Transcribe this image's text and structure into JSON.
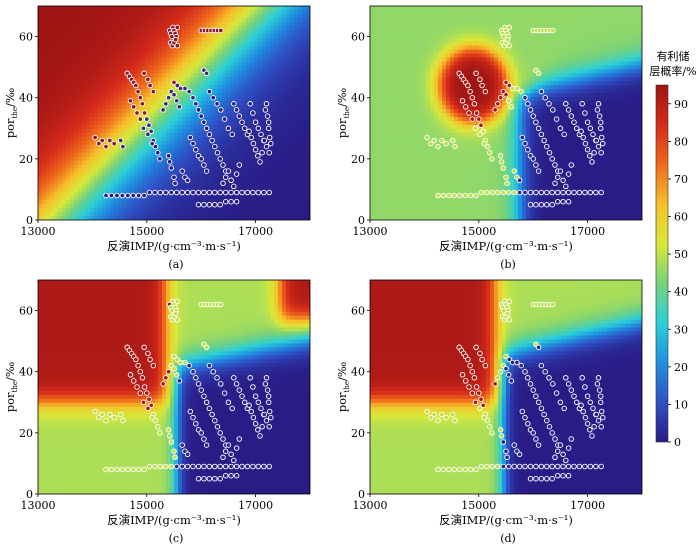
{
  "figure": {
    "colorbar": {
      "title_line1": "有利储",
      "title_line2": "层概率/%",
      "ticks": [
        0,
        10,
        20,
        30,
        40,
        50,
        60,
        70,
        80,
        90
      ],
      "range": [
        0,
        95
      ],
      "colormap": [
        "#2a1c86",
        "#2e4fc4",
        "#1f8fe0",
        "#2ad0d8",
        "#77d27a",
        "#d8e83a",
        "#f6c02a",
        "#ef6a1c",
        "#d42a1a",
        "#9e1414"
      ]
    }
  },
  "chart_data": [
    {
      "type": "heatmap",
      "panel_label": "(a)",
      "xlabel": "反演IMP/(g·cm⁻³·m·s⁻¹)",
      "ylabel_main": "por",
      "ylabel_sub": "the",
      "ylabel_unit": "/‰",
      "xlim": [
        13000,
        18000
      ],
      "ylim": [
        0,
        70
      ],
      "xticks": [
        13000,
        15000,
        17000
      ],
      "yticks": [
        0,
        20,
        40,
        60
      ],
      "field": "linear gradient: probability ~95% at low IMP/high por, decreasing to ~0% at high IMP/low por"
    },
    {
      "type": "heatmap",
      "panel_label": "(b)",
      "xlabel": "反演IMP/(g·cm⁻³·m·s⁻¹)",
      "ylabel_main": "por",
      "ylabel_sub": "the",
      "ylabel_unit": "/‰",
      "xlim": [
        13000,
        18000
      ],
      "ylim": [
        0,
        70
      ],
      "xticks": [
        13000,
        15000,
        17000
      ],
      "yticks": [
        0,
        20,
        40,
        60
      ],
      "field": "high-probability blob (~95%) centered near IMP 14900, por 44; low-probability region (~0%) at IMP > 15700, por < 42; ~45% elsewhere"
    },
    {
      "type": "heatmap",
      "panel_label": "(c)",
      "xlabel": "反演IMP/(g·cm⁻³·m·s⁻¹)",
      "ylabel_main": "por",
      "ylabel_sub": "the",
      "ylabel_unit": "/‰",
      "xlim": [
        13000,
        18000
      ],
      "ylim": [
        0,
        70
      ],
      "xticks": [
        13000,
        15000,
        17000
      ],
      "yticks": [
        0,
        20,
        40,
        60
      ],
      "field": "~90% at IMP < 15200, por > 30; ~90% in upper-right corner IMP > 17300, por > 58; ~0% at IMP > 15600, por < 45; ~48% elsewhere"
    },
    {
      "type": "heatmap",
      "panel_label": "(d)",
      "xlabel": "反演IMP/(g·cm⁻³·m·s⁻¹)",
      "ylabel_main": "por",
      "ylabel_sub": "the",
      "ylabel_unit": "/‰",
      "xlim": [
        13000,
        18000
      ],
      "ylim": [
        0,
        70
      ],
      "xticks": [
        13000,
        15000,
        17000
      ],
      "yticks": [
        0,
        20,
        40,
        60
      ],
      "field": "~90% at IMP < 15200, por > 30; ~0% at IMP > 15500, por < 48; ~48% elsewhere"
    }
  ],
  "well_points": [
    [
      14050,
      27
    ],
    [
      14120,
      25
    ],
    [
      14180,
      26
    ],
    [
      14250,
      24
    ],
    [
      14320,
      26
    ],
    [
      14400,
      25
    ],
    [
      14520,
      26
    ],
    [
      14560,
      24
    ],
    [
      14640,
      48
    ],
    [
      14680,
      47
    ],
    [
      14720,
      46
    ],
    [
      14760,
      45
    ],
    [
      14800,
      44
    ],
    [
      14840,
      42
    ],
    [
      14880,
      40
    ],
    [
      14920,
      38
    ],
    [
      14960,
      35
    ],
    [
      15000,
      33
    ],
    [
      15040,
      31
    ],
    [
      15080,
      29
    ],
    [
      15120,
      26
    ],
    [
      15160,
      24
    ],
    [
      15200,
      22
    ],
    [
      15240,
      20
    ],
    [
      14700,
      39
    ],
    [
      14760,
      37
    ],
    [
      14820,
      35
    ],
    [
      14880,
      33
    ],
    [
      14940,
      30
    ],
    [
      15020,
      28
    ],
    [
      15100,
      25
    ],
    [
      15300,
      36
    ],
    [
      15350,
      38
    ],
    [
      15400,
      40
    ],
    [
      15450,
      42
    ],
    [
      15500,
      41
    ],
    [
      15550,
      39
    ],
    [
      15600,
      37
    ],
    [
      14950,
      48
    ],
    [
      15020,
      46
    ],
    [
      15060,
      44
    ],
    [
      15120,
      42
    ],
    [
      15420,
      62
    ],
    [
      15440,
      61
    ],
    [
      15460,
      60
    ],
    [
      15480,
      63
    ],
    [
      15500,
      62
    ],
    [
      15520,
      61
    ],
    [
      15540,
      60
    ],
    [
      15560,
      63
    ],
    [
      15440,
      58
    ],
    [
      15470,
      57
    ],
    [
      15500,
      58
    ],
    [
      15530,
      59
    ],
    [
      15560,
      57
    ],
    [
      16000,
      62
    ],
    [
      16060,
      62
    ],
    [
      16120,
      62
    ],
    [
      16180,
      62
    ],
    [
      16240,
      62
    ],
    [
      16300,
      62
    ],
    [
      16360,
      62
    ],
    [
      16050,
      49
    ],
    [
      16100,
      48
    ],
    [
      15700,
      43
    ],
    [
      15780,
      42
    ],
    [
      15850,
      40
    ],
    [
      15900,
      38
    ],
    [
      15950,
      36
    ],
    [
      16000,
      34
    ],
    [
      16050,
      32
    ],
    [
      16100,
      30
    ],
    [
      16150,
      28
    ],
    [
      16200,
      26
    ],
    [
      16250,
      24
    ],
    [
      16300,
      22
    ],
    [
      16350,
      20
    ],
    [
      16400,
      18
    ],
    [
      16450,
      16
    ],
    [
      16150,
      42
    ],
    [
      16220,
      40
    ],
    [
      16290,
      38
    ],
    [
      16360,
      36
    ],
    [
      16430,
      33
    ],
    [
      16500,
      30
    ],
    [
      16570,
      28
    ],
    [
      16600,
      38
    ],
    [
      16650,
      36
    ],
    [
      16700,
      34
    ],
    [
      16750,
      32
    ],
    [
      16800,
      30
    ],
    [
      16850,
      28
    ],
    [
      16900,
      38
    ],
    [
      16950,
      35
    ],
    [
      17000,
      32
    ],
    [
      17050,
      30
    ],
    [
      17100,
      28
    ],
    [
      17150,
      26
    ],
    [
      17200,
      24
    ],
    [
      17250,
      22
    ],
    [
      16880,
      29
    ],
    [
      16920,
      27
    ],
    [
      16960,
      25
    ],
    [
      17000,
      23
    ],
    [
      17040,
      21
    ],
    [
      17080,
      19
    ],
    [
      17120,
      22
    ],
    [
      17160,
      26
    ],
    [
      17180,
      36
    ],
    [
      17220,
      34
    ],
    [
      17240,
      30
    ],
    [
      17260,
      27
    ],
    [
      17280,
      25
    ],
    [
      17240,
      32
    ],
    [
      17200,
      38
    ],
    [
      15800,
      27
    ],
    [
      15850,
      25
    ],
    [
      15900,
      23
    ],
    [
      15950,
      21
    ],
    [
      16000,
      20
    ],
    [
      16050,
      18
    ],
    [
      16100,
      16
    ],
    [
      16400,
      12
    ],
    [
      16450,
      14
    ],
    [
      16500,
      16
    ],
    [
      16550,
      13
    ],
    [
      16600,
      11
    ],
    [
      16650,
      15
    ],
    [
      16700,
      18
    ],
    [
      14250,
      8
    ],
    [
      14350,
      8
    ],
    [
      14450,
      8
    ],
    [
      14550,
      8
    ],
    [
      14650,
      8
    ],
    [
      14750,
      8
    ],
    [
      14850,
      8
    ],
    [
      14950,
      8
    ],
    [
      15050,
      9
    ],
    [
      15150,
      9
    ],
    [
      15250,
      9
    ],
    [
      15350,
      9
    ],
    [
      15450,
      9
    ],
    [
      15550,
      9
    ],
    [
      15650,
      9
    ],
    [
      15750,
      9
    ],
    [
      15850,
      9
    ],
    [
      15950,
      9
    ],
    [
      16050,
      9
    ],
    [
      16150,
      9
    ],
    [
      16250,
      9
    ],
    [
      16350,
      9
    ],
    [
      16450,
      9
    ],
    [
      16550,
      9
    ],
    [
      16650,
      9
    ],
    [
      16750,
      9
    ],
    [
      16850,
      9
    ],
    [
      16950,
      9
    ],
    [
      17050,
      9
    ],
    [
      17150,
      9
    ],
    [
      17250,
      9
    ],
    [
      15950,
      5
    ],
    [
      16050,
      5
    ],
    [
      16150,
      5
    ],
    [
      16250,
      5
    ],
    [
      16350,
      5
    ],
    [
      16450,
      6
    ],
    [
      16550,
      6
    ],
    [
      16650,
      6
    ],
    [
      15500,
      45
    ],
    [
      15560,
      44
    ],
    [
      15620,
      43
    ],
    [
      15400,
      21
    ],
    [
      15420,
      19
    ],
    [
      15450,
      17
    ],
    [
      15500,
      14
    ],
    [
      15520,
      12
    ],
    [
      15650,
      16
    ],
    [
      15700,
      14
    ],
    [
      15750,
      13
    ]
  ]
}
